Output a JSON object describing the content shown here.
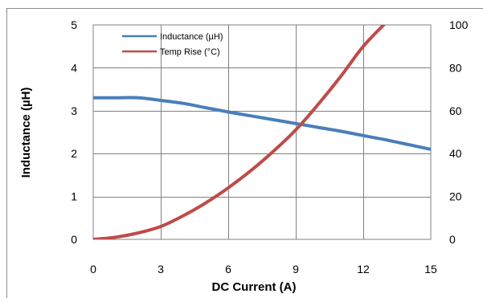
{
  "chart_data": {
    "type": "line",
    "xlabel": "DC Current (A)",
    "ylabel": "Inductance (µH)",
    "xlim": [
      0,
      15
    ],
    "ylim": [
      0,
      5
    ],
    "y2lim": [
      0,
      100
    ],
    "x_ticks": [
      "0",
      "3",
      "6",
      "9",
      "12",
      "15"
    ],
    "y_ticks": [
      "0",
      "1",
      "2",
      "3",
      "4",
      "5"
    ],
    "y2_ticks": [
      "0",
      "20",
      "40",
      "60",
      "80",
      "100"
    ],
    "grid": true,
    "legend_position": "top-left",
    "series": [
      {
        "name": "Inductance (µH)",
        "axis": "left",
        "color": "#4a7ebb",
        "x": [
          0,
          1,
          2,
          3,
          4,
          5,
          6,
          7,
          8,
          9,
          10,
          11,
          12,
          13,
          14,
          15
        ],
        "y": [
          3.3,
          3.3,
          3.3,
          3.24,
          3.17,
          3.07,
          2.97,
          2.88,
          2.79,
          2.7,
          2.61,
          2.52,
          2.42,
          2.32,
          2.21,
          2.1
        ]
      },
      {
        "name": "Temp Rise (°C)",
        "axis": "right",
        "color": "#be4b48",
        "x": [
          0,
          1,
          2,
          3,
          4,
          5,
          6,
          7,
          8,
          9,
          10,
          11,
          12,
          13
        ],
        "y": [
          0,
          1,
          3,
          6,
          11,
          17,
          24,
          32,
          41,
          51,
          63,
          76,
          90,
          101
        ]
      }
    ]
  }
}
